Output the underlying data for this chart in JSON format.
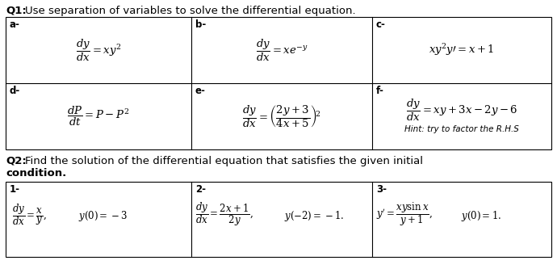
{
  "q1_title_bold": "Q1:",
  "q1_title_rest": " Use separation of variables to solve the differential equation.",
  "q2_title": "Q2: Find the solution of the differential equation that satisfies the given initial\ncondition.",
  "background_color": "#ffffff",
  "border_color": "#000000",
  "text_color": "#000000",
  "figsize": [
    6.9,
    3.33
  ],
  "dpi": 100,
  "cells_a": {
    "label": "a-",
    "eq": "$\\dfrac{dy}{dx} = xy^2$"
  },
  "cells_b": {
    "label": "b-",
    "eq": "$\\dfrac{dy}{dx} = xe^{-y}$"
  },
  "cells_c": {
    "label": "c-",
    "eq": "$xy^2y' = x + 1$"
  },
  "cells_d": {
    "label": "d-",
    "eq": "$\\dfrac{dP}{dt} = P - P^2$"
  },
  "cells_e": {
    "label": "e-",
    "eq": "$\\dfrac{dy}{dx} = \\left(\\dfrac{2y+3}{4x+5}\\right)^{\\!2}$"
  },
  "cells_f": {
    "label": "f-",
    "eq": "$\\dfrac{dy}{dx} = xy + 3x - 2y - 6$",
    "hint": "Hint: try to factor the R.H.S"
  },
  "q2_1": {
    "label": "1-",
    "eq": "$\\dfrac{dy}{dx} = \\dfrac{x}{y},\\quad y(0) = -3$"
  },
  "q2_2": {
    "label": "2-",
    "eq": "$\\dfrac{dy}{dx} = \\dfrac{2x+1}{2y},\\quad y(-2) = -1.$"
  },
  "q2_3": {
    "label": "3-",
    "eq": "$y' = \\dfrac{xy\\sin x}{y+1},\\quad y(0) = 1.$"
  }
}
